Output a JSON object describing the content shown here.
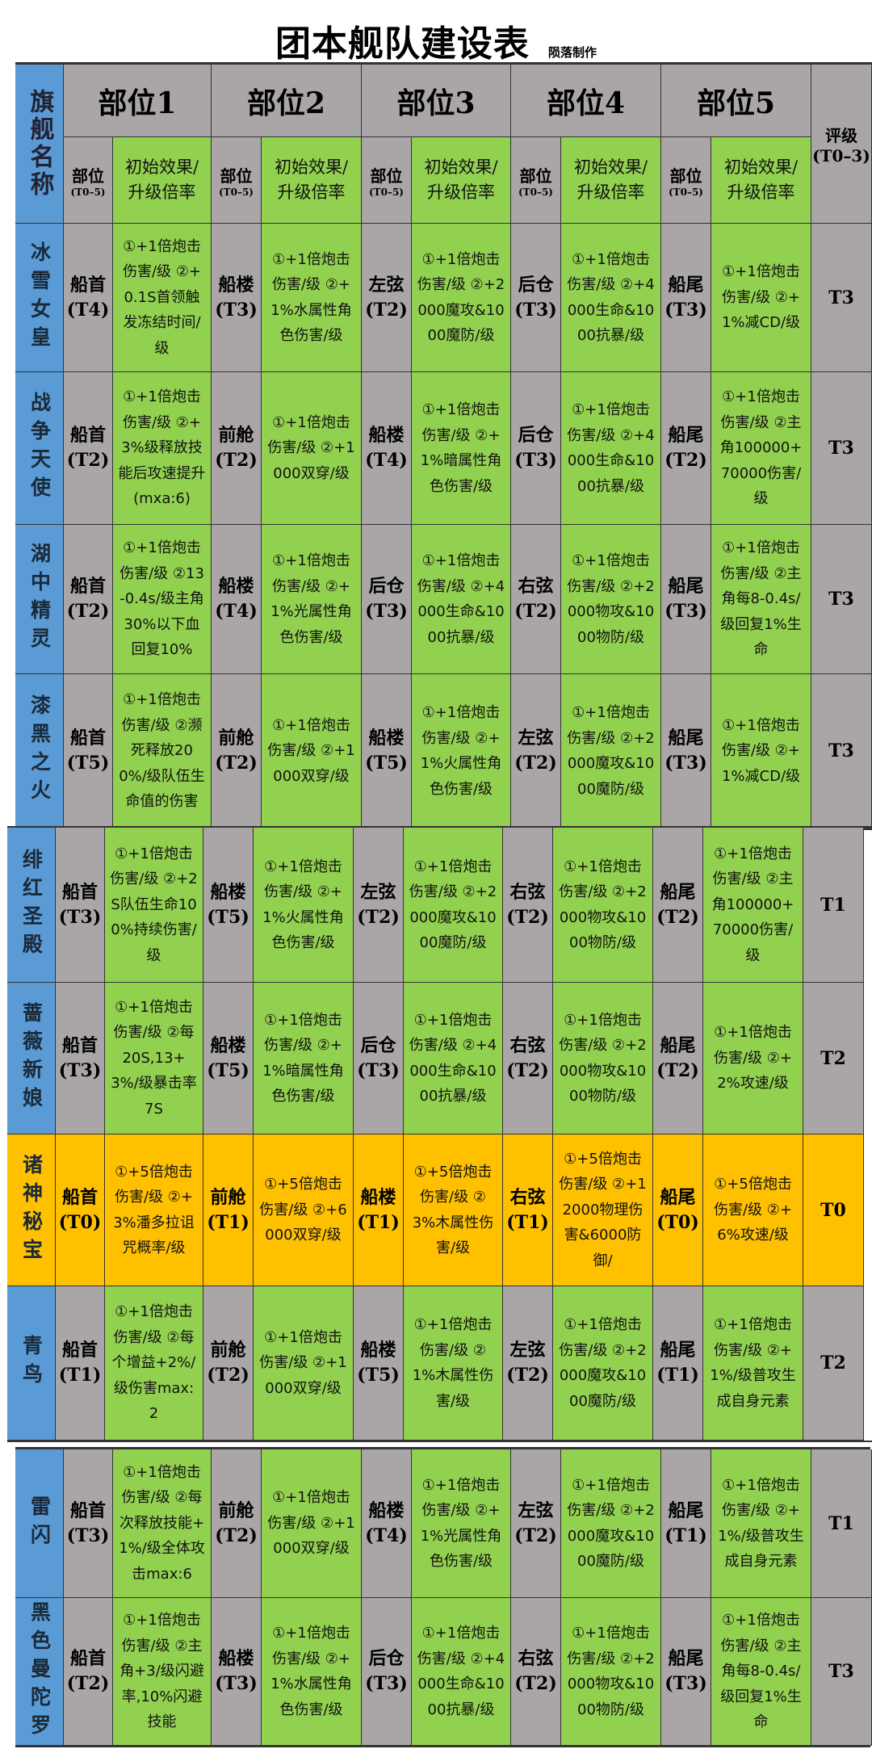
{
  "title": "团本舰队建设表",
  "credit": "陨落制作",
  "header": {
    "name_header": "旗舰名称",
    "part_headers": [
      "部位1",
      "部位2",
      "部位3",
      "部位4",
      "部位5"
    ],
    "sub_pos": "部位",
    "sub_pos_range": "(T0–5)",
    "sub_effect": "初始效果/升级倍率",
    "grade_header": "评级",
    "grade_range": "(T0–3)"
  },
  "colors": {
    "name_bg": "#5b9bd5",
    "pos_bg": "#aaa6a8",
    "effect_bg": "#92d050",
    "highlight_bg": "#ffc000"
  },
  "rows": [
    {
      "name": "冰雪女皇",
      "highlight": false,
      "grade": "T3",
      "parts": [
        {
          "pos": "船首",
          "tier": "(T4)",
          "effect": "①+1倍炮击伤害/级 ②+0.1S首领触发冻结时间/级"
        },
        {
          "pos": "船楼",
          "tier": "(T3)",
          "effect": "①+1倍炮击伤害/级 ②+1%水属性角色伤害/级"
        },
        {
          "pos": "左弦",
          "tier": "(T2)",
          "effect": "①+1倍炮击伤害/级 ②+2000魔攻&1000魔防/级"
        },
        {
          "pos": "后仓",
          "tier": "(T3)",
          "effect": "①+1倍炮击伤害/级 ②+4000生命&1000抗暴/级"
        },
        {
          "pos": "船尾",
          "tier": "(T3)",
          "effect": "①+1倍炮击伤害/级 ②+1%减CD/级"
        }
      ]
    },
    {
      "name": "战争天使",
      "highlight": false,
      "grade": "T3",
      "parts": [
        {
          "pos": "船首",
          "tier": "(T2)",
          "effect": "①+1倍炮击伤害/级 ②+3%级释放技能后攻速提升(mxa:6)"
        },
        {
          "pos": "前舱",
          "tier": "(T2)",
          "effect": "①+1倍炮击伤害/级 ②+1000双穿/级"
        },
        {
          "pos": "船楼",
          "tier": "(T4)",
          "effect": "①+1倍炮击伤害/级 ②+1%暗属性角色伤害/级"
        },
        {
          "pos": "后仓",
          "tier": "(T3)",
          "effect": "①+1倍炮击伤害/级 ②+4000生命&1000抗暴/级"
        },
        {
          "pos": "船尾",
          "tier": "(T2)",
          "effect": "①+1倍炮击伤害/级 ②主角100000+70000伤害/级"
        }
      ]
    },
    {
      "name": "湖中精灵",
      "highlight": false,
      "grade": "T3",
      "parts": [
        {
          "pos": "船首",
          "tier": "(T2)",
          "effect": "①+1倍炮击伤害/级 ②13-0.4s/级主角30%以下血回复10%"
        },
        {
          "pos": "船楼",
          "tier": "(T4)",
          "effect": "①+1倍炮击伤害/级 ②+1%光属性角色伤害/级"
        },
        {
          "pos": "后仓",
          "tier": "(T3)",
          "effect": "①+1倍炮击伤害/级 ②+4000生命&1000抗暴/级"
        },
        {
          "pos": "右弦",
          "tier": "(T2)",
          "effect": "①+1倍炮击伤害/级 ②+2000物攻&1000物防/级"
        },
        {
          "pos": "船尾",
          "tier": "(T3)",
          "effect": "①+1倍炮击伤害/级 ②主角每8-0.4s/级回复1%生命"
        }
      ]
    },
    {
      "name": "漆黑之火",
      "highlight": false,
      "grade": "T3",
      "parts": [
        {
          "pos": "船首",
          "tier": "(T5)",
          "effect": "①+1倍炮击伤害/级 ②濒死释放200%/级队伍生命值的伤害"
        },
        {
          "pos": "前舱",
          "tier": "(T2)",
          "effect": "①+1倍炮击伤害/级 ②+1000双穿/级"
        },
        {
          "pos": "船楼",
          "tier": "(T5)",
          "effect": "①+1倍炮击伤害/级 ②+1%火属性角色伤害/级"
        },
        {
          "pos": "左弦",
          "tier": "(T2)",
          "effect": "①+1倍炮击伤害/级 ②+2000魔攻&1000魔防/级"
        },
        {
          "pos": "船尾",
          "tier": "(T3)",
          "effect": "①+1倍炮击伤害/级 ②+1%减CD/级"
        }
      ]
    },
    {
      "name": "绯红圣殿",
      "highlight": false,
      "grade": "T1",
      "parts": [
        {
          "pos": "船首",
          "tier": "(T3)",
          "effect": "①+1倍炮击伤害/级 ②+2S队伍生命100%持续伤害/级"
        },
        {
          "pos": "船楼",
          "tier": "(T5)",
          "effect": "①+1倍炮击伤害/级 ②+1%火属性角色伤害/级"
        },
        {
          "pos": "左弦",
          "tier": "(T2)",
          "effect": "①+1倍炮击伤害/级 ②+2000魔攻&1000魔防/级"
        },
        {
          "pos": "右弦",
          "tier": "(T2)",
          "effect": "①+1倍炮击伤害/级 ②+2000物攻&1000物防/级"
        },
        {
          "pos": "船尾",
          "tier": "(T2)",
          "effect": "①+1倍炮击伤害/级 ②主角100000+70000伤害/级"
        }
      ]
    },
    {
      "name": "蔷薇新娘",
      "highlight": false,
      "grade": "T2",
      "parts": [
        {
          "pos": "船首",
          "tier": "(T3)",
          "effect": "①+1倍炮击伤害/级 ②每20S,13+3%/级暴击率7S"
        },
        {
          "pos": "船楼",
          "tier": "(T5)",
          "effect": "①+1倍炮击伤害/级 ②+1%暗属性角色伤害/级"
        },
        {
          "pos": "后仓",
          "tier": "(T3)",
          "effect": "①+1倍炮击伤害/级 ②+4000生命&1000抗暴/级"
        },
        {
          "pos": "右弦",
          "tier": "(T2)",
          "effect": "①+1倍炮击伤害/级 ②+2000物攻&1000物防/级"
        },
        {
          "pos": "船尾",
          "tier": "(T2)",
          "effect": "①+1倍炮击伤害/级 ②+2%攻速/级"
        }
      ]
    },
    {
      "name": "诸神秘宝",
      "highlight": true,
      "grade": "T0",
      "parts": [
        {
          "pos": "船首",
          "tier": "(T0)",
          "effect": "①+5倍炮击伤害/级 ②+3%潘多拉诅咒概率/级"
        },
        {
          "pos": "前舱",
          "tier": "(T1)",
          "effect": "①+5倍炮击伤害/级 ②+6000双穿/级"
        },
        {
          "pos": "船楼",
          "tier": "(T1)",
          "effect": "①+5倍炮击伤害/级 ②3%木属性伤害/级"
        },
        {
          "pos": "右弦",
          "tier": "(T1)",
          "effect": "①+5倍炮击伤害/级 ②+12000物理伤害&6000防御/"
        },
        {
          "pos": "船尾",
          "tier": "(T0)",
          "effect": "①+5倍炮击伤害/级 ②+6%攻速/级"
        }
      ]
    },
    {
      "name": "青鸟",
      "highlight": false,
      "grade": "T2",
      "parts": [
        {
          "pos": "船首",
          "tier": "(T1)",
          "effect": "①+1倍炮击伤害/级 ②每个增益+2%/级伤害max:2"
        },
        {
          "pos": "前舱",
          "tier": "(T2)",
          "effect": "①+1倍炮击伤害/级 ②+1000双穿/级"
        },
        {
          "pos": "船楼",
          "tier": "(T5)",
          "effect": "①+1倍炮击伤害/级 ②1%木属性伤害/级"
        },
        {
          "pos": "左弦",
          "tier": "(T2)",
          "effect": "①+1倍炮击伤害/级 ②+2000魔攻&1000魔防/级"
        },
        {
          "pos": "船尾",
          "tier": "(T1)",
          "effect": "①+1倍炮击伤害/级 ②+1%/级普攻生成自身元素"
        }
      ]
    },
    {
      "name": "雷闪",
      "highlight": false,
      "grade": "T1",
      "parts": [
        {
          "pos": "船首",
          "tier": "(T3)",
          "effect": "①+1倍炮击伤害/级 ②每次释放技能+1%/级全体攻击max:6"
        },
        {
          "pos": "前舱",
          "tier": "(T2)",
          "effect": "①+1倍炮击伤害/级 ②+1000双穿/级"
        },
        {
          "pos": "船楼",
          "tier": "(T4)",
          "effect": "①+1倍炮击伤害/级 ②+1%光属性角色伤害/级"
        },
        {
          "pos": "左弦",
          "tier": "(T2)",
          "effect": "①+1倍炮击伤害/级 ②+2000魔攻&1000魔防/级"
        },
        {
          "pos": "船尾",
          "tier": "(T1)",
          "effect": "①+1倍炮击伤害/级 ②+1%/级普攻生成自身元素"
        }
      ]
    },
    {
      "name": "黑色曼陀罗",
      "highlight": false,
      "grade": "T3",
      "parts": [
        {
          "pos": "船首",
          "tier": "(T2)",
          "effect": "①+1倍炮击伤害/级 ②主角+3/级闪避率,10%闪避技能"
        },
        {
          "pos": "船楼",
          "tier": "(T3)",
          "effect": "①+1倍炮击伤害/级 ②+1%水属性角色伤害/级"
        },
        {
          "pos": "后仓",
          "tier": "(T3)",
          "effect": "①+1倍炮击伤害/级 ②+4000生命&1000抗暴/级"
        },
        {
          "pos": "右弦",
          "tier": "(T2)",
          "effect": "①+1倍炮击伤害/级 ②+2000物攻&1000物防/级"
        },
        {
          "pos": "船尾",
          "tier": "(T3)",
          "effect": "①+1倍炮击伤害/级 ②主角每8-0.4s/级回复1%生命"
        }
      ]
    }
  ]
}
